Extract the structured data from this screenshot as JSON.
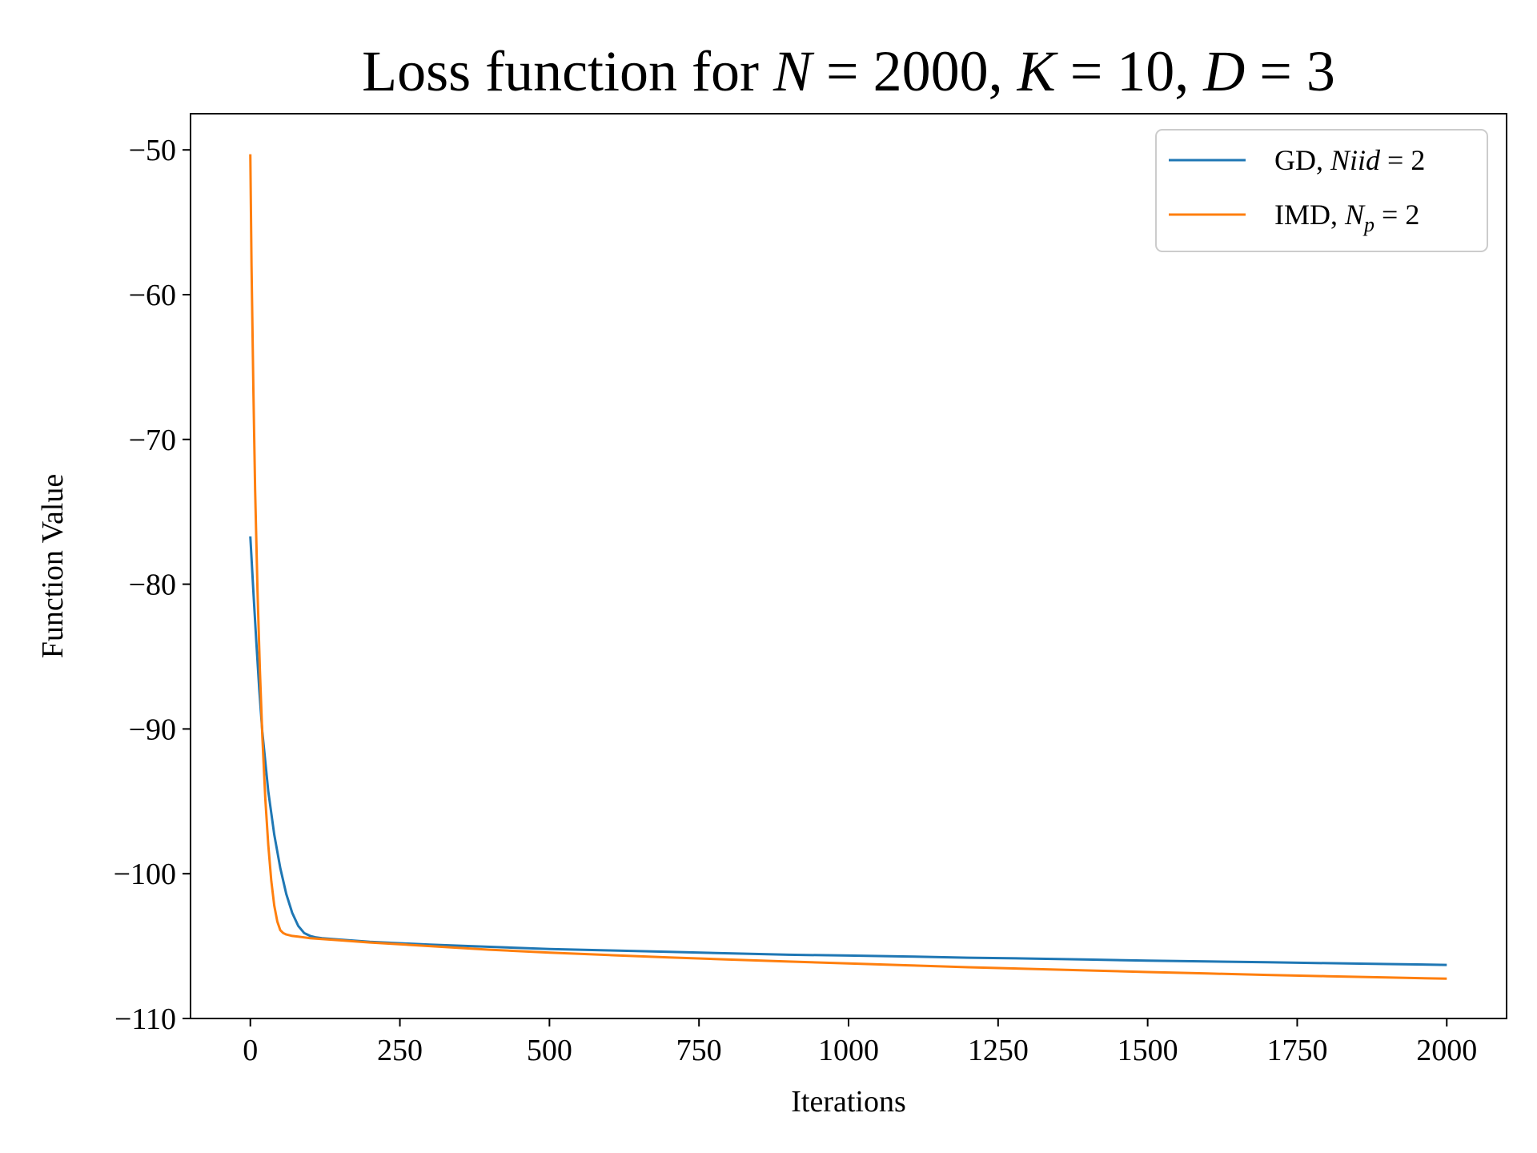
{
  "chart_data": {
    "type": "line",
    "title": {
      "prefix": "Loss function for ",
      "parts": [
        {
          "var": "N",
          "rest": " = 2000, "
        },
        {
          "var": "K",
          "rest": " = 10, "
        },
        {
          "var": "D",
          "rest": " = 3"
        }
      ]
    },
    "xlabel": "Iterations",
    "ylabel": "Function Value",
    "xlim": [
      -100,
      2100
    ],
    "ylim": [
      -110,
      -47.5
    ],
    "xticks": [
      0,
      250,
      500,
      750,
      1000,
      1250,
      1500,
      1750,
      2000
    ],
    "yticks": [
      -50,
      -60,
      -70,
      -80,
      -90,
      -100,
      -110
    ],
    "xtick_labels": [
      "0",
      "250",
      "500",
      "750",
      "1000",
      "1250",
      "1500",
      "1750",
      "2000"
    ],
    "ytick_labels": [
      "−50",
      "−60",
      "−70",
      "−80",
      "−90",
      "−100",
      "−110"
    ],
    "legend_position": "top-right",
    "series": [
      {
        "name": "GD, Niid = 2",
        "legend": {
          "prefix": "GD, ",
          "var": "Niid",
          "sub": "",
          "rest": " = 2"
        },
        "color": "#1f77b4",
        "x": [
          0,
          5,
          10,
          15,
          20,
          30,
          40,
          50,
          60,
          70,
          80,
          90,
          100,
          110,
          120,
          150,
          200,
          300,
          400,
          500,
          600,
          700,
          800,
          900,
          1000,
          1100,
          1200,
          1300,
          1400,
          1500,
          1600,
          1700,
          1800,
          1900,
          2000
        ],
        "y": [
          -76.7,
          -80.5,
          -84.0,
          -87.3,
          -90.2,
          -94.3,
          -97.3,
          -99.6,
          -101.4,
          -102.7,
          -103.6,
          -104.1,
          -104.3,
          -104.4,
          -104.45,
          -104.55,
          -104.7,
          -104.9,
          -105.05,
          -105.2,
          -105.3,
          -105.4,
          -105.5,
          -105.6,
          -105.65,
          -105.72,
          -105.8,
          -105.86,
          -105.93,
          -106.0,
          -106.06,
          -106.12,
          -106.18,
          -106.24,
          -106.3
        ]
      },
      {
        "name": "IMD, Np = 2",
        "legend": {
          "prefix": "IMD, ",
          "var": "N",
          "sub": "p",
          "rest": " = 2"
        },
        "color": "#ff7f0e",
        "x": [
          0,
          2,
          5,
          8,
          12,
          16,
          20,
          25,
          30,
          35,
          40,
          45,
          50,
          55,
          60,
          70,
          80,
          100,
          150,
          200,
          300,
          400,
          500,
          600,
          700,
          800,
          900,
          1000,
          1100,
          1200,
          1300,
          1400,
          1500,
          1600,
          1700,
          1800,
          1900,
          2000
        ],
        "y": [
          -50.3,
          -58.0,
          -66.5,
          -73.5,
          -80.5,
          -86.0,
          -90.5,
          -94.8,
          -98.0,
          -100.5,
          -102.2,
          -103.3,
          -103.9,
          -104.1,
          -104.2,
          -104.3,
          -104.35,
          -104.45,
          -104.6,
          -104.75,
          -105.0,
          -105.25,
          -105.45,
          -105.62,
          -105.78,
          -105.93,
          -106.07,
          -106.2,
          -106.33,
          -106.46,
          -106.57,
          -106.68,
          -106.79,
          -106.89,
          -106.99,
          -107.08,
          -107.17,
          -107.25
        ]
      }
    ]
  }
}
